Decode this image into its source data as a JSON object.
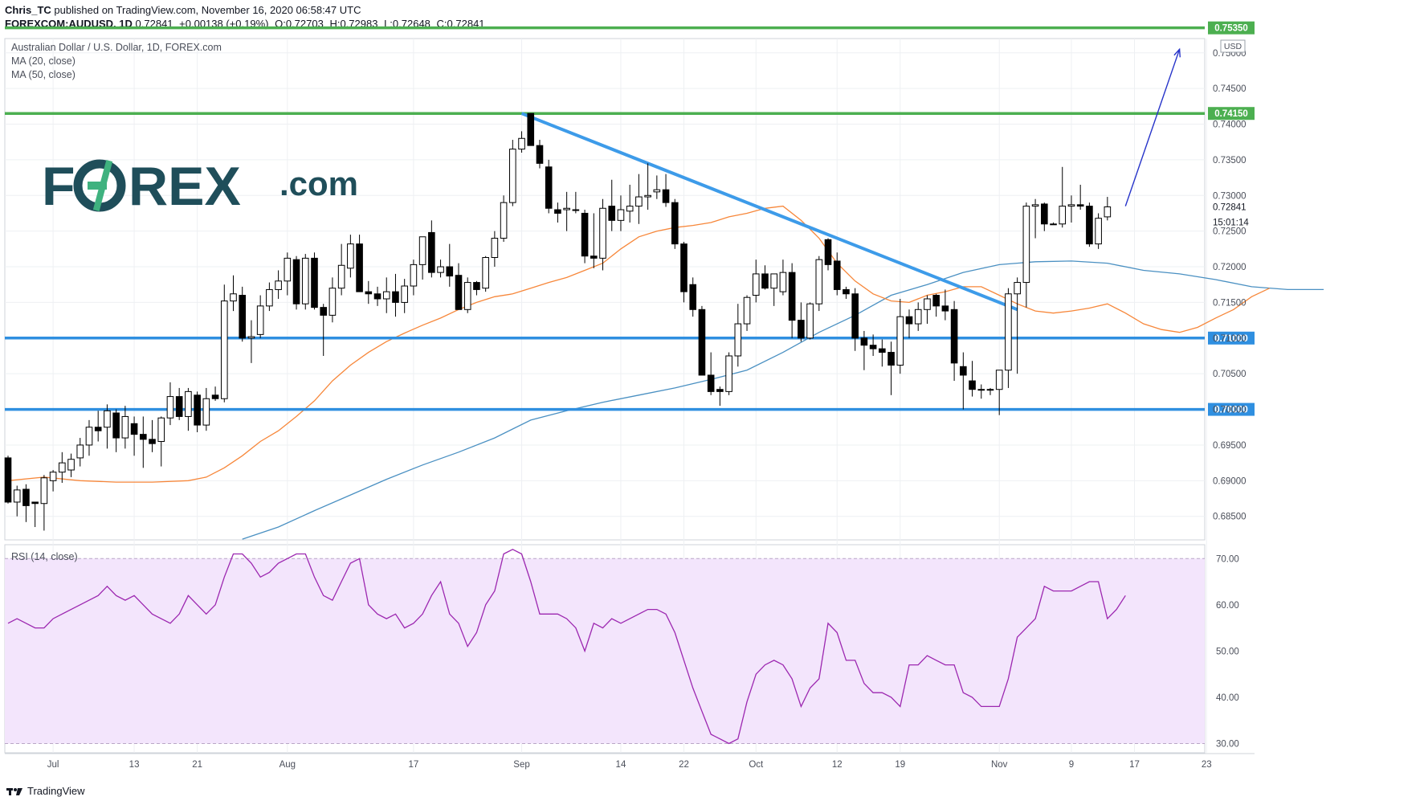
{
  "header": {
    "line1_user": "Chris_TC",
    "line1_rest": "published on TradingView.com, November 16, 2020 06:58:47 UTC",
    "symbol": "FOREXCOM:AUDUSD, 1D",
    "last": "0.72841",
    "change": "+0.00138 (+0.19%)",
    "o_label": "O:",
    "o": "0.72703",
    "h_label": "H:",
    "h": "0.72983",
    "l_label": "L:",
    "l": "0.72648",
    "c_label": "C:",
    "c": "0.72841"
  },
  "legend": {
    "title": "Australian Dollar / U.S. Dollar, 1D, FOREX.com",
    "ma20": "MA (20, close)",
    "ma50": "MA (50, close)",
    "rsi": "RSI (14, close)"
  },
  "brand": {
    "logo_left": "F",
    "logo_right": "REX",
    "logo_suffix": ".com",
    "logo_color": "#1f4e5a",
    "accent": "#3fb27f"
  },
  "currency": "USD",
  "footer": {
    "brand": "TradingView"
  },
  "colors": {
    "up": "#ffffff",
    "down": "#000000",
    "ma20": "#f7873a",
    "ma50": "#4a90c2",
    "trendline": "#3d9be9",
    "support": "#2f8fe0",
    "resistance": "#4caf50",
    "rsi": "#9c27b0",
    "rsi_band": "#f3e5fc"
  },
  "chart_data": [
    {
      "type": "candlestick",
      "title": "Australian Dollar / U.S. Dollar, 1D, FOREX.com",
      "ylim": [
        0.6817,
        0.752
      ],
      "y_ticks": [
        "0.75000",
        "0.74500",
        "0.74000",
        "0.73500",
        "0.73000",
        "0.72500",
        "0.72000",
        "0.71500",
        "0.71000",
        "0.70500",
        "0.70000",
        "0.69500",
        "0.69000",
        "0.68500"
      ],
      "x_ticks": [
        "Jul",
        "13",
        "21",
        "Aug",
        "17",
        "Sep",
        "14",
        "22",
        "Oct",
        "12",
        "19",
        "Nov",
        "9",
        "17",
        "23"
      ],
      "candles_ohlc": [
        [
          0.6932,
          0.6935,
          0.6868,
          0.687
        ],
        [
          0.687,
          0.6893,
          0.685,
          0.6887
        ],
        [
          0.6888,
          0.6895,
          0.6842,
          0.6865
        ],
        [
          0.687,
          0.687,
          0.6835,
          0.6868
        ],
        [
          0.6868,
          0.6908,
          0.683,
          0.6904
        ],
        [
          0.69,
          0.6915,
          0.6885,
          0.6912
        ],
        [
          0.6912,
          0.694,
          0.6897,
          0.6925
        ],
        [
          0.6915,
          0.6938,
          0.6905,
          0.693
        ],
        [
          0.6932,
          0.696,
          0.692,
          0.695
        ],
        [
          0.695,
          0.6985,
          0.6935,
          0.6975
        ],
        [
          0.6975,
          0.6998,
          0.6955,
          0.697
        ],
        [
          0.6975,
          0.7007,
          0.6945,
          0.6998
        ],
        [
          0.6995,
          0.7,
          0.694,
          0.696
        ],
        [
          0.696,
          0.7005,
          0.6945,
          0.699
        ],
        [
          0.698,
          0.699,
          0.6935,
          0.6965
        ],
        [
          0.6965,
          0.699,
          0.6918,
          0.6958
        ],
        [
          0.6958,
          0.6985,
          0.694,
          0.6952
        ],
        [
          0.6955,
          0.699,
          0.692,
          0.6988
        ],
        [
          0.6988,
          0.7038,
          0.6978,
          0.7018
        ],
        [
          0.7018,
          0.703,
          0.6985,
          0.699
        ],
        [
          0.699,
          0.703,
          0.697,
          0.7025
        ],
        [
          0.702,
          0.7025,
          0.6968,
          0.6978
        ],
        [
          0.6978,
          0.703,
          0.697,
          0.7015
        ],
        [
          0.702,
          0.7032,
          0.7012,
          0.7015
        ],
        [
          0.7015,
          0.7175,
          0.701,
          0.7152
        ],
        [
          0.7152,
          0.7188,
          0.7138,
          0.7162
        ],
        [
          0.716,
          0.7172,
          0.7095,
          0.71
        ],
        [
          0.71,
          0.7125,
          0.7065,
          0.7102
        ],
        [
          0.7105,
          0.716,
          0.71,
          0.7145
        ],
        [
          0.7145,
          0.7178,
          0.7138,
          0.7168
        ],
        [
          0.7168,
          0.7195,
          0.7155,
          0.718
        ],
        [
          0.718,
          0.722,
          0.716,
          0.7212
        ],
        [
          0.721,
          0.7215,
          0.714,
          0.7148
        ],
        [
          0.7148,
          0.7218,
          0.714,
          0.7212
        ],
        [
          0.7212,
          0.722,
          0.714,
          0.7143
        ],
        [
          0.7143,
          0.7148,
          0.7075,
          0.7132
        ],
        [
          0.7132,
          0.7185,
          0.7122,
          0.717
        ],
        [
          0.717,
          0.7232,
          0.716,
          0.7202
        ],
        [
          0.7198,
          0.7245,
          0.7185,
          0.7232
        ],
        [
          0.7232,
          0.7245,
          0.717,
          0.7165
        ],
        [
          0.7165,
          0.718,
          0.7148,
          0.7162
        ],
        [
          0.7162,
          0.7172,
          0.7145,
          0.7155
        ],
        [
          0.7155,
          0.7185,
          0.7135,
          0.7165
        ],
        [
          0.7165,
          0.719,
          0.713,
          0.715
        ],
        [
          0.715,
          0.7183,
          0.7135,
          0.7173
        ],
        [
          0.7173,
          0.721,
          0.716,
          0.7203
        ],
        [
          0.7203,
          0.724,
          0.7182,
          0.7242
        ],
        [
          0.7248,
          0.7265,
          0.7185,
          0.7192
        ],
        [
          0.7192,
          0.721,
          0.7185,
          0.72
        ],
        [
          0.72,
          0.7232,
          0.7172,
          0.7187
        ],
        [
          0.7188,
          0.7205,
          0.7142,
          0.714
        ],
        [
          0.714,
          0.7185,
          0.7135,
          0.7178
        ],
        [
          0.7178,
          0.718,
          0.716,
          0.7168
        ],
        [
          0.717,
          0.7215,
          0.7165,
          0.7213
        ],
        [
          0.7213,
          0.725,
          0.72,
          0.724
        ],
        [
          0.724,
          0.73,
          0.7235,
          0.729
        ],
        [
          0.729,
          0.7378,
          0.7285,
          0.7365
        ],
        [
          0.7365,
          0.739,
          0.736,
          0.738
        ],
        [
          0.7415,
          0.7402,
          0.737,
          0.737
        ],
        [
          0.737,
          0.7378,
          0.7338,
          0.7345
        ],
        [
          0.734,
          0.735,
          0.7275,
          0.7282
        ],
        [
          0.728,
          0.729,
          0.7262,
          0.7275
        ],
        [
          0.728,
          0.7305,
          0.725,
          0.7282
        ],
        [
          0.728,
          0.7305,
          0.7275,
          0.728
        ],
        [
          0.7275,
          0.728,
          0.7205,
          0.7215
        ],
        [
          0.7215,
          0.7275,
          0.7198,
          0.7212
        ],
        [
          0.7212,
          0.7295,
          0.7195,
          0.7282
        ],
        [
          0.7285,
          0.7322,
          0.725,
          0.7265
        ],
        [
          0.7265,
          0.73,
          0.725,
          0.728
        ],
        [
          0.7278,
          0.7315,
          0.7262,
          0.7285
        ],
        [
          0.7285,
          0.733,
          0.726,
          0.7298
        ],
        [
          0.7298,
          0.7345,
          0.728,
          0.73
        ],
        [
          0.7305,
          0.7328,
          0.7295,
          0.7308
        ],
        [
          0.7308,
          0.733,
          0.7284,
          0.729
        ],
        [
          0.729,
          0.7295,
          0.7225,
          0.7232
        ],
        [
          0.7232,
          0.7235,
          0.715,
          0.7165
        ],
        [
          0.7175,
          0.7185,
          0.713,
          0.714
        ],
        [
          0.714,
          0.7145,
          0.705,
          0.7048
        ],
        [
          0.7048,
          0.708,
          0.702,
          0.7025
        ],
        [
          0.7028,
          0.7032,
          0.7005,
          0.7025
        ],
        [
          0.7025,
          0.708,
          0.702,
          0.7075
        ],
        [
          0.7075,
          0.7148,
          0.706,
          0.712
        ],
        [
          0.712,
          0.716,
          0.711,
          0.7157
        ],
        [
          0.716,
          0.721,
          0.715,
          0.719
        ],
        [
          0.719,
          0.7202,
          0.7168,
          0.717
        ],
        [
          0.717,
          0.718,
          0.7145,
          0.719
        ],
        [
          0.7165,
          0.721,
          0.716,
          0.7192
        ],
        [
          0.7192,
          0.7205,
          0.71,
          0.7125
        ],
        [
          0.7125,
          0.715,
          0.7095,
          0.71
        ],
        [
          0.71,
          0.715,
          0.7098,
          0.7148
        ],
        [
          0.7148,
          0.7215,
          0.7138,
          0.721
        ],
        [
          0.7238,
          0.724,
          0.7195,
          0.7203
        ],
        [
          0.7208,
          0.722,
          0.716,
          0.7168
        ],
        [
          0.7168,
          0.7172,
          0.7155,
          0.7162
        ],
        [
          0.7162,
          0.717,
          0.7082,
          0.71
        ],
        [
          0.71,
          0.711,
          0.7055,
          0.709
        ],
        [
          0.709,
          0.7105,
          0.7075,
          0.7085
        ],
        [
          0.7085,
          0.7098,
          0.706,
          0.708
        ],
        [
          0.708,
          0.7095,
          0.702,
          0.7062
        ],
        [
          0.7062,
          0.7155,
          0.705,
          0.713
        ],
        [
          0.713,
          0.714,
          0.71,
          0.712
        ],
        [
          0.712,
          0.715,
          0.711,
          0.714
        ],
        [
          0.714,
          0.716,
          0.712,
          0.7155
        ],
        [
          0.716,
          0.7162,
          0.713,
          0.7145
        ],
        [
          0.7145,
          0.7168,
          0.7125,
          0.7138
        ],
        [
          0.714,
          0.7152,
          0.704,
          0.7065
        ],
        [
          0.706,
          0.708,
          0.7,
          0.7048
        ],
        [
          0.704,
          0.7068,
          0.7018,
          0.7028
        ],
        [
          0.7028,
          0.7035,
          0.7015,
          0.7028
        ],
        [
          0.7028,
          0.703,
          0.702,
          0.7028
        ],
        [
          0.7028,
          0.7055,
          0.6992,
          0.7055
        ],
        [
          0.7055,
          0.717,
          0.703,
          0.7162
        ],
        [
          0.7162,
          0.7185,
          0.705,
          0.7178
        ],
        [
          0.7178,
          0.729,
          0.7143,
          0.7285
        ],
        [
          0.7285,
          0.7295,
          0.724,
          0.7287
        ],
        [
          0.7288,
          0.729,
          0.725,
          0.726
        ],
        [
          0.726,
          0.7262,
          0.726,
          0.726
        ],
        [
          0.726,
          0.734,
          0.7255,
          0.7285
        ],
        [
          0.7285,
          0.73,
          0.7262,
          0.7287
        ],
        [
          0.7287,
          0.7315,
          0.728,
          0.7285
        ],
        [
          0.7285,
          0.729,
          0.7228,
          0.7232
        ],
        [
          0.7232,
          0.7275,
          0.7225,
          0.7268
        ],
        [
          0.727,
          0.7298,
          0.7265,
          0.7284
        ]
      ],
      "ma20": [
        0.69,
        0.6905,
        0.69,
        0.6898,
        0.6898,
        0.69,
        0.6905,
        0.6918,
        0.6935,
        0.6955,
        0.697,
        0.699,
        0.7012,
        0.704,
        0.7062,
        0.708,
        0.7095,
        0.7107,
        0.7118,
        0.7128,
        0.714,
        0.715,
        0.7158,
        0.7162,
        0.717,
        0.7178,
        0.7185,
        0.7195,
        0.7205,
        0.7225,
        0.7242,
        0.725,
        0.7255,
        0.7258,
        0.7262,
        0.727,
        0.7275,
        0.7282,
        0.7285,
        0.7265,
        0.724,
        0.7205,
        0.718,
        0.7162,
        0.7152,
        0.715,
        0.716,
        0.7165,
        0.7172,
        0.7172,
        0.716,
        0.7148,
        0.7138,
        0.7135,
        0.7138,
        0.7142,
        0.7148,
        0.7135,
        0.712,
        0.7112,
        0.7108,
        0.7115,
        0.7128,
        0.714,
        0.7158,
        0.717
      ],
      "ma20_x": [
        0,
        4,
        8,
        12,
        16,
        20,
        22,
        24,
        26,
        28,
        30,
        32,
        34,
        36,
        38,
        40,
        42,
        44,
        46,
        48,
        50,
        52,
        54,
        56,
        58,
        60,
        62,
        64,
        66,
        68,
        70,
        72,
        74,
        76,
        78,
        80,
        82,
        84,
        86,
        88,
        90,
        92,
        94,
        96,
        98,
        100,
        102,
        104,
        106,
        108,
        110,
        112,
        114,
        116,
        118,
        120,
        122,
        124,
        126,
        128,
        130,
        132,
        134,
        136,
        138,
        140
      ],
      "ma50": [
        0.6818,
        0.6835,
        0.6858,
        0.688,
        0.6902,
        0.6922,
        0.694,
        0.696,
        0.6985,
        0.6998,
        0.701,
        0.702,
        0.703,
        0.7042,
        0.7055,
        0.708,
        0.7108,
        0.7132,
        0.716,
        0.7175,
        0.7192,
        0.7203,
        0.7207,
        0.7208,
        0.7205,
        0.7195,
        0.719,
        0.7182,
        0.7172,
        0.7168,
        0.7168
      ],
      "ma50_x": [
        26,
        30,
        34,
        38,
        42,
        46,
        50,
        54,
        58,
        62,
        66,
        70,
        74,
        78,
        82,
        86,
        90,
        94,
        98,
        102,
        106,
        110,
        114,
        118,
        122,
        126,
        130,
        134,
        138,
        142,
        146
      ],
      "horizontal_levels": [
        {
          "value": 0.7535,
          "label": "0.75350",
          "color": "#4caf50"
        },
        {
          "value": 0.7415,
          "label": "0.74150",
          "color": "#4caf50"
        },
        {
          "value": 0.71,
          "label": "0.71000",
          "color": "#2f8fe0"
        },
        {
          "value": 0.7,
          "label": "0.70000",
          "color": "#2f8fe0"
        }
      ],
      "trendline": {
        "from": [
          57,
          0.7415
        ],
        "to": [
          112,
          0.714
        ]
      },
      "arrow": {
        "from": [
          124,
          0.7285
        ],
        "to": [
          130,
          0.7505
        ]
      },
      "last_price_label": "0.72841",
      "countdown_label": "15:01:14"
    },
    {
      "type": "line",
      "title": "RSI (14, close)",
      "ylim": [
        28,
        73
      ],
      "y_ticks": [
        "70.00",
        "60.00",
        "50.00",
        "40.00",
        "30.00"
      ],
      "band": [
        30,
        70
      ],
      "values": [
        56,
        57,
        56,
        55,
        55,
        57,
        58,
        59,
        60,
        61,
        62,
        64,
        62,
        61,
        62,
        60,
        58,
        57,
        56,
        58,
        62,
        60,
        58,
        60,
        66,
        71,
        71,
        69,
        66,
        67,
        69,
        70,
        71,
        71,
        66,
        62,
        61,
        65,
        69,
        70,
        60,
        58,
        57,
        58,
        55,
        56,
        58,
        62,
        65,
        58,
        56,
        51,
        54,
        60,
        63,
        71,
        72,
        71,
        65,
        58,
        58,
        58,
        57,
        55,
        50,
        56,
        55,
        57,
        56,
        57,
        58,
        59,
        59,
        58,
        54,
        48,
        42,
        37,
        32,
        31,
        30,
        31,
        39,
        45,
        47,
        48,
        47,
        44,
        38,
        42,
        44,
        56,
        54,
        48,
        48,
        43,
        41,
        41,
        40,
        38,
        47,
        47,
        49,
        48,
        47,
        47,
        41,
        40,
        38,
        38,
        38,
        44,
        53,
        55,
        57,
        64,
        63,
        63,
        63,
        64,
        65,
        65,
        57,
        59,
        62
      ],
      "values_x": [
        0,
        1,
        2,
        3,
        4,
        5,
        6,
        7,
        8,
        9,
        10,
        11,
        12,
        13,
        14,
        15,
        16,
        17,
        18,
        19,
        20,
        21,
        22,
        23,
        24,
        25,
        26,
        27,
        28,
        29,
        30,
        31,
        32,
        33,
        34,
        35,
        36,
        37,
        38,
        39,
        40,
        41,
        42,
        43,
        44,
        45,
        46,
        47,
        48,
        49,
        50,
        51,
        52,
        53,
        54,
        55,
        56,
        57,
        58,
        59,
        60,
        61,
        62,
        63,
        64,
        65,
        66,
        67,
        68,
        69,
        70,
        71,
        72,
        73,
        74,
        75,
        76,
        77,
        78,
        79,
        80,
        81,
        82,
        83,
        84,
        85,
        86,
        87,
        88,
        89,
        90,
        91,
        92,
        93,
        94,
        95,
        96,
        97,
        98,
        99,
        100,
        101,
        102,
        103,
        104,
        105,
        106,
        107,
        108,
        109,
        110,
        111,
        112,
        113,
        114,
        115,
        116,
        117,
        118,
        119,
        120,
        121,
        122,
        123,
        124
      ]
    }
  ]
}
